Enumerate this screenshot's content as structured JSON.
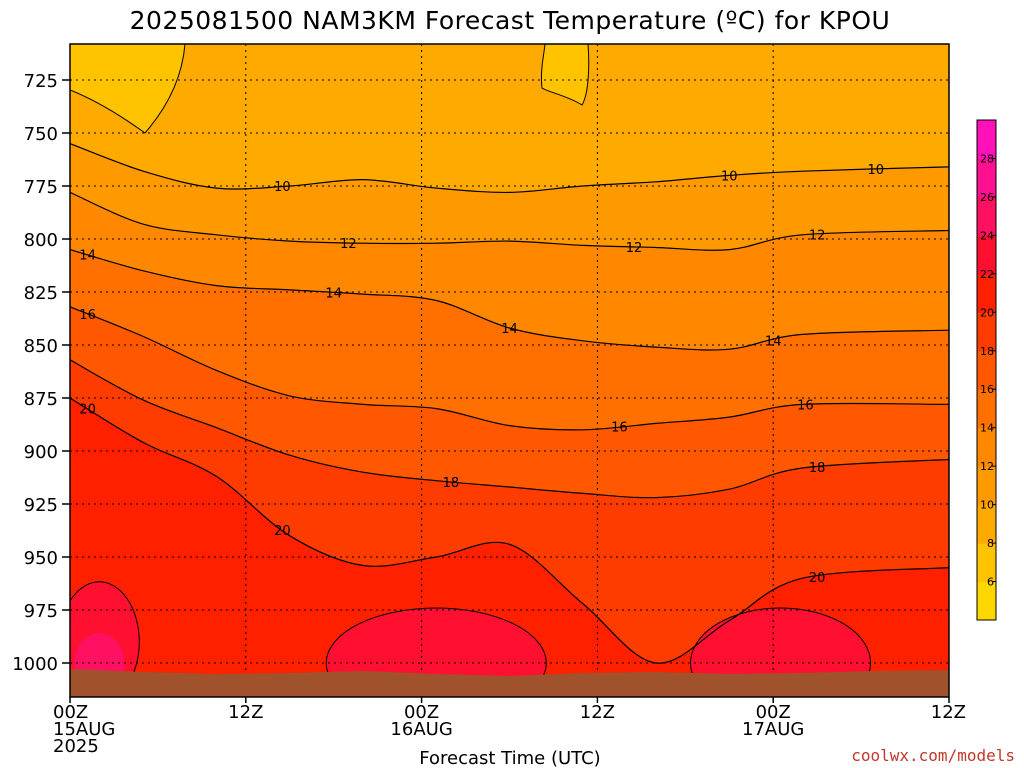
{
  "chart_data": {
    "type": "contour",
    "title": "2025081500 NAM3KM Forecast Temperature (ºC) for KPOU",
    "xlabel": "Forecast Time (UTC)",
    "ylabel": "",
    "x_ticks": [
      {
        "hour": 0,
        "lines": [
          "00Z",
          "15AUG",
          "2025"
        ]
      },
      {
        "hour": 12,
        "lines": [
          "12Z"
        ]
      },
      {
        "hour": 24,
        "lines": [
          "00Z",
          "16AUG"
        ]
      },
      {
        "hour": 36,
        "lines": [
          "12Z"
        ]
      },
      {
        "hour": 48,
        "lines": [
          "00Z",
          "17AUG"
        ]
      },
      {
        "hour": 60,
        "lines": [
          "12Z"
        ]
      }
    ],
    "xlim": [
      0,
      60
    ],
    "y_ticks": [
      725,
      750,
      775,
      800,
      825,
      850,
      875,
      900,
      925,
      950,
      975,
      1000
    ],
    "ylim": [
      710,
      1008
    ],
    "colorbar": {
      "ticks": [
        6,
        8,
        10,
        12,
        14,
        16,
        18,
        20,
        22,
        24,
        26,
        28
      ],
      "range": [
        4,
        30
      ],
      "colors": [
        "#ffd700",
        "#ffc300",
        "#ffaa00",
        "#ff9900",
        "#ff8800",
        "#ff7000",
        "#ff5800",
        "#ff3c00",
        "#ff2000",
        "#ff1030",
        "#ff1060",
        "#ff1090",
        "#ff10b8"
      ]
    },
    "contours": [
      {
        "value": 10,
        "pressures": [
          755,
          768,
          776,
          775,
          772,
          776,
          778,
          775,
          773,
          770,
          768,
          766
        ],
        "labels": [
          {
            "hour": 14.5,
            "text": "10"
          },
          {
            "hour": 45,
            "text": "10"
          },
          {
            "hour": 55,
            "text": "10"
          }
        ]
      },
      {
        "value": 12,
        "pressures": [
          778,
          793,
          798,
          801,
          802,
          802,
          801,
          803,
          804,
          805,
          798,
          796
        ],
        "labels": [
          {
            "hour": 19,
            "text": "12"
          },
          {
            "hour": 38.5,
            "text": "12"
          },
          {
            "hour": 51,
            "text": "12"
          }
        ]
      },
      {
        "value": 14,
        "pressures": [
          805,
          815,
          822,
          824,
          826,
          829,
          842,
          848,
          851,
          852,
          845,
          843
        ],
        "labels": [
          {
            "hour": 1.2,
            "text": "14"
          },
          {
            "hour": 18,
            "text": "14"
          },
          {
            "hour": 30,
            "text": "14"
          },
          {
            "hour": 48,
            "text": "14"
          }
        ]
      },
      {
        "value": 16,
        "pressures": [
          832,
          846,
          862,
          874,
          878,
          880,
          888,
          890,
          887,
          884,
          878,
          878
        ],
        "labels": [
          {
            "hour": 1.2,
            "text": "16"
          },
          {
            "hour": 37.5,
            "text": "16"
          },
          {
            "hour": 50.2,
            "text": "16"
          }
        ]
      },
      {
        "value": 18,
        "pressures": [
          857,
          876,
          889,
          902,
          910,
          914,
          917,
          920,
          922,
          918,
          908,
          904
        ],
        "labels": [
          {
            "hour": 26,
            "text": "18"
          },
          {
            "hour": 51,
            "text": "18"
          }
        ]
      },
      {
        "value": 20,
        "pressures": [
          875,
          896,
          912,
          940,
          954,
          950,
          944,
          972,
          1000,
          980,
          960,
          955
        ],
        "labels": [
          {
            "hour": 1.2,
            "text": "20"
          },
          {
            "hour": 14.5,
            "text": "20"
          },
          {
            "hour": 51,
            "text": "20"
          }
        ]
      }
    ],
    "tick_hours": [
      0,
      12,
      24,
      36,
      48,
      60
    ],
    "credit": "coolwx.com/models"
  }
}
